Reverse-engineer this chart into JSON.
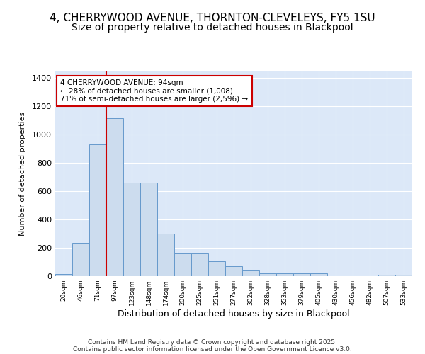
{
  "title_line1": "4, CHERRYWOOD AVENUE, THORNTON-CLEVELEYS, FY5 1SU",
  "title_line2": "Size of property relative to detached houses in Blackpool",
  "xlabel": "Distribution of detached houses by size in Blackpool",
  "ylabel": "Number of detached properties",
  "categories": [
    "20sqm",
    "46sqm",
    "71sqm",
    "97sqm",
    "123sqm",
    "148sqm",
    "174sqm",
    "200sqm",
    "225sqm",
    "251sqm",
    "277sqm",
    "302sqm",
    "328sqm",
    "353sqm",
    "379sqm",
    "405sqm",
    "430sqm",
    "456sqm",
    "482sqm",
    "507sqm",
    "533sqm"
  ],
  "values": [
    15,
    235,
    930,
    1115,
    660,
    660,
    300,
    160,
    160,
    105,
    70,
    40,
    20,
    18,
    18,
    18,
    0,
    0,
    0,
    8,
    8
  ],
  "bar_color": "#ccdcee",
  "bar_edge_color": "#6699cc",
  "vline_x": 3,
  "vline_color": "#cc0000",
  "annotation_title": "4 CHERRYWOOD AVENUE: 94sqm",
  "annotation_line1": "← 28% of detached houses are smaller (1,008)",
  "annotation_line2": "71% of semi-detached houses are larger (2,596) →",
  "annotation_box_color": "#ffffff",
  "annotation_box_edge": "#cc0000",
  "ylim": [
    0,
    1450
  ],
  "yticks": [
    0,
    200,
    400,
    600,
    800,
    1000,
    1200,
    1400
  ],
  "footer_line1": "Contains HM Land Registry data © Crown copyright and database right 2025.",
  "footer_line2": "Contains public sector information licensed under the Open Government Licence v3.0.",
  "fig_bg_color": "#ffffff",
  "plot_bg_color": "#dce8f8",
  "grid_color": "#ffffff",
  "title_fontsize": 11,
  "subtitle_fontsize": 10
}
